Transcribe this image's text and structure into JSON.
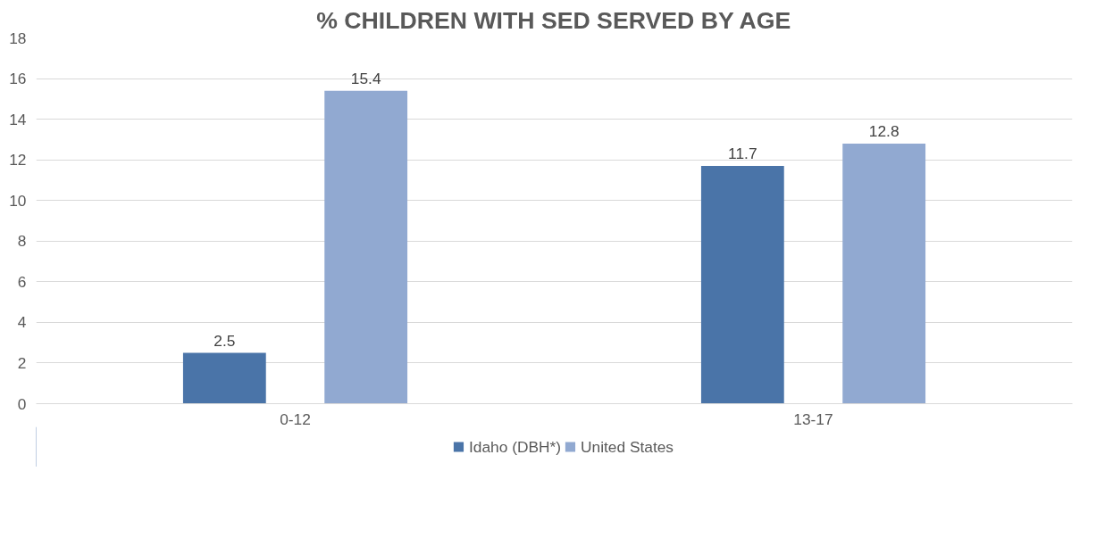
{
  "chart_data": {
    "type": "bar",
    "title": "% CHILDREN WITH SED SERVED BY AGE",
    "categories": [
      "0-12",
      "13-17"
    ],
    "series": [
      {
        "name": "Idaho (DBH*)",
        "color": "#4a74a8",
        "values": [
          2.5,
          11.7
        ]
      },
      {
        "name": "United States",
        "color": "#91a9d1",
        "values": [
          15.4,
          12.8
        ]
      }
    ],
    "ylim": [
      0,
      18
    ],
    "yticks": [
      0,
      2,
      4,
      6,
      8,
      10,
      12,
      14,
      16,
      18
    ],
    "grid": "y",
    "legend": "bottom",
    "data_labels": true
  }
}
